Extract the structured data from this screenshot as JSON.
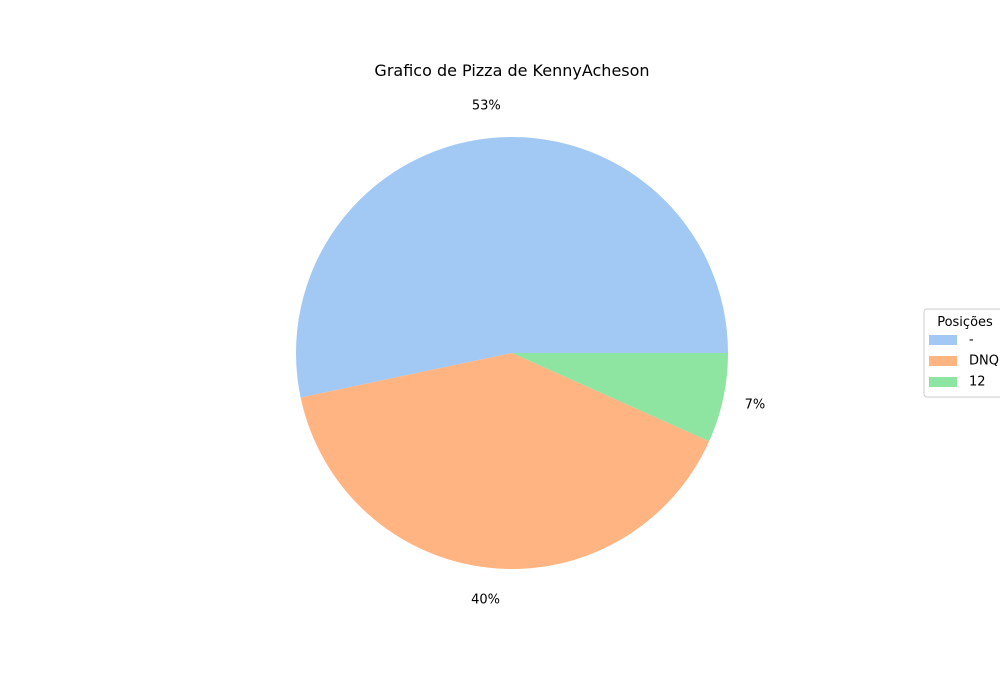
{
  "chart_data": {
    "type": "pie",
    "title": "Grafico de Pizza de KennyAcheson",
    "categories": [
      "-",
      "DNQ",
      "12"
    ],
    "values": [
      53.3,
      40.0,
      6.7
    ],
    "labels": [
      "53%",
      "40%",
      "7%"
    ],
    "colors": [
      "#a1c9f4",
      "#ffb482",
      "#8de5a1"
    ],
    "start_angle_deg": 0,
    "direction": "counterclockwise",
    "legend": {
      "title": "Posições",
      "placement": "center-right"
    }
  }
}
